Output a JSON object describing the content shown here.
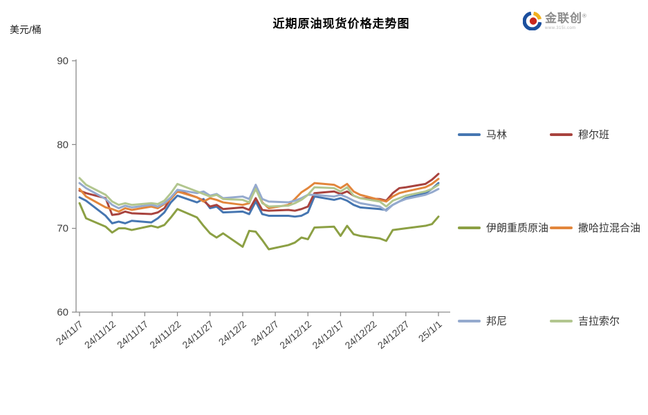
{
  "logo": {
    "brand": "金联创",
    "registered": "®",
    "site": "www.315i.com"
  },
  "chart_data": {
    "type": "line",
    "title": "近期原油现货价格走势图",
    "unit_label": "美元/桶",
    "ylim": [
      60,
      90
    ],
    "yticks": [
      60,
      70,
      80,
      90
    ],
    "grid": false,
    "legend_position": "right",
    "x_tick_labels": [
      "24/11/7",
      "24/11/12",
      "24/11/17",
      "24/11/22",
      "24/11/27",
      "24/12/2",
      "24/12/7",
      "24/12/12",
      "24/12/17",
      "24/12/22",
      "24/12/27",
      "25/1/1"
    ],
    "x_tick_offsets": [
      0,
      5,
      10,
      15,
      20,
      25,
      30,
      35,
      40,
      45,
      50,
      55
    ],
    "point_day_offsets": [
      0,
      1,
      4,
      5,
      6,
      7,
      8,
      11,
      12,
      13,
      14,
      15,
      18,
      19,
      20,
      21,
      22,
      25,
      26,
      27,
      28,
      29,
      32,
      33,
      34,
      35,
      36,
      39,
      40,
      41,
      42,
      43,
      46,
      47,
      48,
      49,
      50,
      53,
      54,
      55
    ],
    "series": [
      {
        "name": "马林",
        "color": "#4676B1",
        "values": [
          73.7,
          73.3,
          71.5,
          70.6,
          70.8,
          70.6,
          70.9,
          70.7,
          71.2,
          71.9,
          73.1,
          73.9,
          73.1,
          73.5,
          72.4,
          72.6,
          71.9,
          72.0,
          71.7,
          73.2,
          71.7,
          71.5,
          71.5,
          71.4,
          71.5,
          71.9,
          73.8,
          73.4,
          73.6,
          73.3,
          72.8,
          72.5,
          72.3,
          72.2,
          72.8,
          73.2,
          73.6,
          74.2,
          74.7,
          75.4
        ]
      },
      {
        "name": "穆尔班",
        "color": "#A8433E",
        "values": [
          74.5,
          74.2,
          73.6,
          71.6,
          71.7,
          72.0,
          71.8,
          71.7,
          71.9,
          72.4,
          73.6,
          74.5,
          73.7,
          73.3,
          72.6,
          72.8,
          72.3,
          72.5,
          72.2,
          73.6,
          72.2,
          72.1,
          72.2,
          72.1,
          72.3,
          72.6,
          74.2,
          74.4,
          74.1,
          74.4,
          73.9,
          73.6,
          73.5,
          73.3,
          74.2,
          74.8,
          74.9,
          75.3,
          75.8,
          76.5
        ]
      },
      {
        "name": "伊朗重质原油",
        "color": "#8CA044",
        "values": [
          73.0,
          71.2,
          70.2,
          69.5,
          70.0,
          70.0,
          69.8,
          70.3,
          70.1,
          70.4,
          71.3,
          72.3,
          71.3,
          70.3,
          69.4,
          68.9,
          69.4,
          67.8,
          69.7,
          69.6,
          68.6,
          67.5,
          68.0,
          68.3,
          68.9,
          68.7,
          70.1,
          70.2,
          69.1,
          70.3,
          69.3,
          69.1,
          68.8,
          68.5,
          69.8,
          69.9,
          70.0,
          70.3,
          70.5,
          71.4
        ]
      },
      {
        "name": "撒哈拉混合油",
        "color": "#E2863C",
        "values": [
          74.7,
          73.8,
          72.5,
          72.3,
          72.0,
          72.4,
          72.2,
          72.6,
          72.4,
          72.9,
          73.5,
          74.4,
          73.7,
          73.2,
          73.6,
          73.4,
          73.1,
          72.8,
          73.0,
          74.9,
          73.1,
          72.4,
          72.8,
          73.5,
          74.3,
          74.8,
          75.4,
          75.2,
          74.8,
          75.3,
          74.4,
          74.0,
          73.4,
          73.2,
          73.8,
          74.2,
          74.4,
          74.9,
          75.3,
          75.9
        ]
      },
      {
        "name": "邦尼",
        "color": "#95AACE",
        "values": [
          75.4,
          74.8,
          73.5,
          72.8,
          72.4,
          72.7,
          72.5,
          72.8,
          72.6,
          73.0,
          73.7,
          74.6,
          74.2,
          74.4,
          73.9,
          74.1,
          73.6,
          73.8,
          73.5,
          75.2,
          73.5,
          73.2,
          73.1,
          73.3,
          73.6,
          74.0,
          74.0,
          73.8,
          74.0,
          73.7,
          73.3,
          73.0,
          72.6,
          72.1,
          72.8,
          73.2,
          73.5,
          74.0,
          74.3,
          74.7
        ]
      },
      {
        "name": "吉拉索尔",
        "color": "#B2C68F",
        "values": [
          76.0,
          75.2,
          74.0,
          73.2,
          72.8,
          73.0,
          72.8,
          73.0,
          72.9,
          73.3,
          74.2,
          75.3,
          74.4,
          74.1,
          73.8,
          74.0,
          73.5,
          73.4,
          73.1,
          74.7,
          73.0,
          72.6,
          72.7,
          73.0,
          73.4,
          74.0,
          74.9,
          74.8,
          74.4,
          74.9,
          73.9,
          73.6,
          73.2,
          72.6,
          73.3,
          73.6,
          73.9,
          74.4,
          74.7,
          75.2
        ]
      }
    ]
  }
}
